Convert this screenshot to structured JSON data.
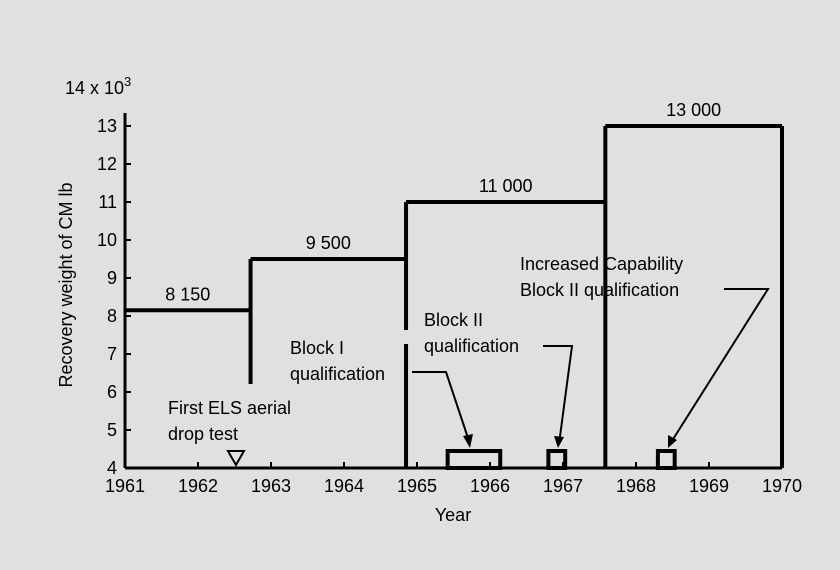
{
  "chart_data": {
    "type": "step",
    "x_label": "Year",
    "y_label": "Recovery weight of CM lb",
    "xlim": [
      1961,
      1970
    ],
    "xticks": [
      1961,
      1962,
      1963,
      1964,
      1965,
      1966,
      1967,
      1968,
      1969,
      1970
    ],
    "ylim": [
      4,
      14
    ],
    "yticks": [
      4,
      5,
      6,
      7,
      8,
      9,
      10,
      11,
      12,
      13,
      {
        "value": 14,
        "label": "14 x 10³"
      }
    ],
    "series": [
      {
        "x_start": [
          1961,
          1962.72,
          1964.85,
          1967.58
        ],
        "x_end": [
          1962.72,
          1964.85,
          1967.58,
          1970
        ],
        "values": [
          8.15,
          9.5,
          11,
          13
        ],
        "value_labels": [
          "8 150",
          "9 500",
          "11 000",
          "13 000"
        ],
        "color": "#000000"
      }
    ],
    "events": [
      {
        "label": "First ELS aerial drop test",
        "x": 1962.52
      },
      {
        "label": "Block I qualification",
        "x_start": 1965.42,
        "x_end": 1966.14
      },
      {
        "label": "Block II qualification",
        "x_start": 1966.8,
        "x_end": 1967.03
      },
      {
        "label": "Increased Capability Block II qualification",
        "x_start": 1968.3,
        "x_end": 1968.53
      }
    ]
  }
}
